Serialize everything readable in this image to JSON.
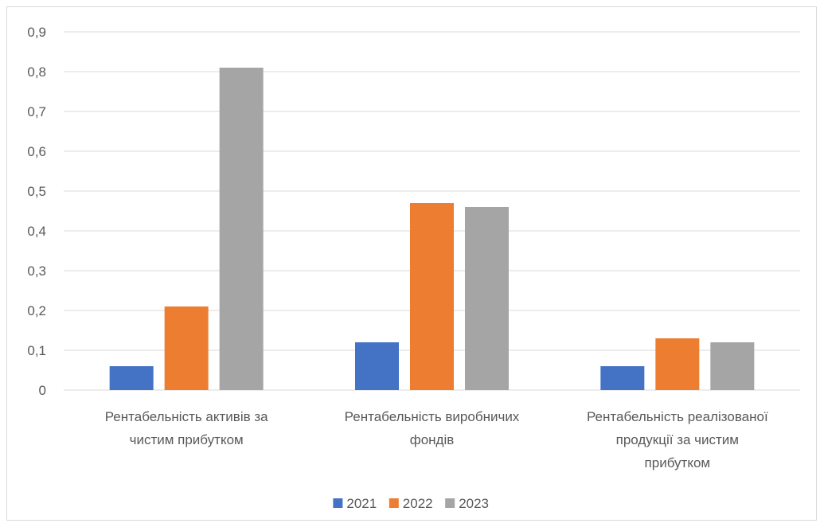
{
  "chart_data": {
    "type": "bar",
    "categories": [
      [
        "Рентабельність активів за",
        "чистим прибутком"
      ],
      [
        "Рентабельність виробничих",
        "фондів"
      ],
      [
        "Рентабельність реалізованої",
        "продукції за чистим",
        "прибутком"
      ]
    ],
    "series": [
      {
        "name": "2021",
        "color": "#4472c4",
        "values": [
          0.06,
          0.12,
          0.06
        ]
      },
      {
        "name": "2022",
        "color": "#ed7d31",
        "values": [
          0.21,
          0.47,
          0.13
        ]
      },
      {
        "name": "2023",
        "color": "#a5a5a5",
        "values": [
          0.81,
          0.46,
          0.12
        ]
      }
    ],
    "yticks": [
      "0",
      "0,1",
      "0,2",
      "0,3",
      "0,4",
      "0,5",
      "0,6",
      "0,7",
      "0,8",
      "0,9"
    ],
    "ylim": [
      0,
      0.9
    ],
    "grid": true,
    "legend_position": "bottom",
    "title": "",
    "xlabel": "",
    "ylabel": ""
  }
}
